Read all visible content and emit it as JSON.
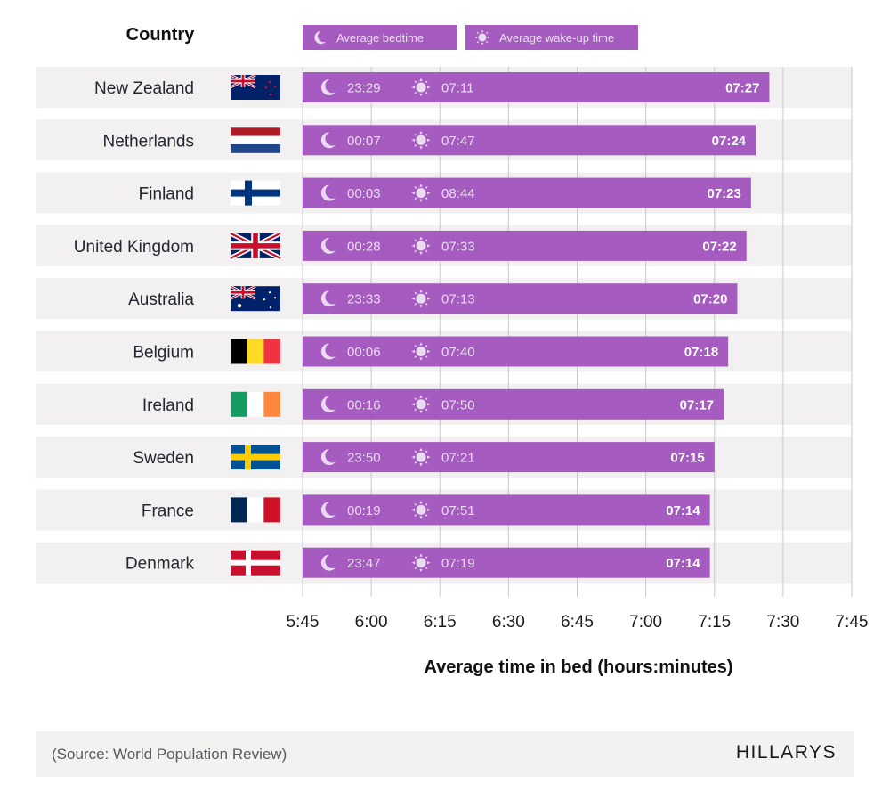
{
  "chart_data": {
    "type": "bar",
    "orientation": "horizontal",
    "title": "",
    "row_header": "Country",
    "xlabel": "Average time in bed (hours:minutes)",
    "ylabel": "",
    "x_unit": "minutes",
    "xlim_minutes": [
      345,
      465
    ],
    "x_ticks": [
      "5:45",
      "6:00",
      "6:15",
      "6:30",
      "6:45",
      "7:00",
      "7:15",
      "7:30",
      "7:45"
    ],
    "x_tick_values_minutes": [
      345,
      360,
      375,
      390,
      405,
      420,
      435,
      450,
      465
    ],
    "grid": true,
    "legend": {
      "placement": "top",
      "entries": [
        {
          "icon": "moon-icon",
          "label": "Average bedtime"
        },
        {
          "icon": "sun-icon",
          "label": "Average wake-up time"
        }
      ]
    },
    "categories": [
      "New Zealand",
      "Netherlands",
      "Finland",
      "United Kingdom",
      "Australia",
      "Belgium",
      "Ireland",
      "Sweden",
      "France",
      "Denmark"
    ],
    "rows": [
      {
        "country": "New Zealand",
        "flag": "nz",
        "bedtime": "23:29",
        "wake": "07:11",
        "total": "07:27",
        "total_minutes": 447
      },
      {
        "country": "Netherlands",
        "flag": "nl",
        "bedtime": "00:07",
        "wake": "07:47",
        "total": "07:24",
        "total_minutes": 444
      },
      {
        "country": "Finland",
        "flag": "fi",
        "bedtime": "00:03",
        "wake": "08:44",
        "total": "07:23",
        "total_minutes": 443
      },
      {
        "country": "United Kingdom",
        "flag": "gb",
        "bedtime": "00:28",
        "wake": "07:33",
        "total": "07:22",
        "total_minutes": 442
      },
      {
        "country": "Australia",
        "flag": "au",
        "bedtime": "23:33",
        "wake": "07:13",
        "total": "07:20",
        "total_minutes": 440
      },
      {
        "country": "Belgium",
        "flag": "be",
        "bedtime": "00:06",
        "wake": "07:40",
        "total": "07:18",
        "total_minutes": 438
      },
      {
        "country": "Ireland",
        "flag": "ie",
        "bedtime": "00:16",
        "wake": "07:50",
        "total": "07:17",
        "total_minutes": 437
      },
      {
        "country": "Sweden",
        "flag": "se",
        "bedtime": "23:50",
        "wake": "07:21",
        "total": "07:15",
        "total_minutes": 435
      },
      {
        "country": "France",
        "flag": "fr",
        "bedtime": "00:19",
        "wake": "07:51",
        "total": "07:14",
        "total_minutes": 434
      },
      {
        "country": "Denmark",
        "flag": "dk",
        "bedtime": "23:47",
        "wake": "07:19",
        "total": "07:14",
        "total_minutes": 434
      }
    ],
    "colors": {
      "bar": "#a55bbf",
      "bar_text": "#eadcf0",
      "row_band": "#f2f0f0",
      "grid": "#c8c8c8"
    }
  },
  "footer": {
    "source": "(Source: World Population Review)",
    "brand": "HILLARYS"
  }
}
